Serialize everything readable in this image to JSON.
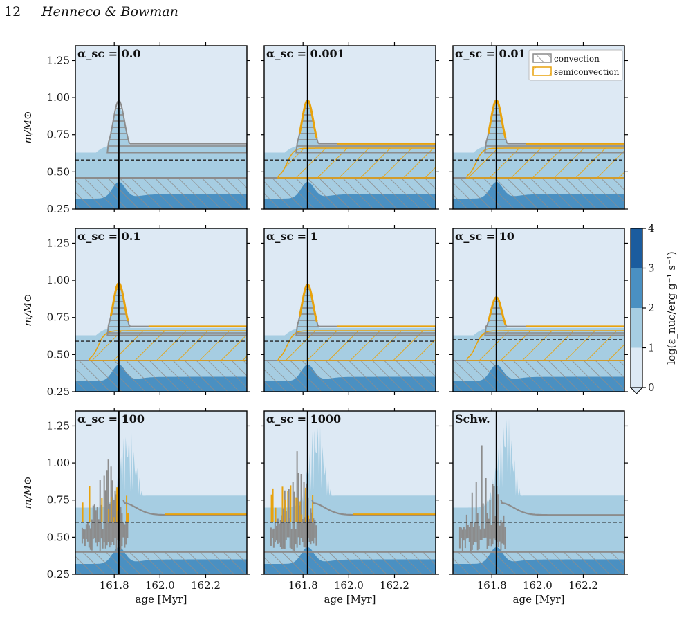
{
  "header": {
    "page_number": "12",
    "running_head": "Henneco & Bowman"
  },
  "colors": {
    "level0": "#dde9f4",
    "level1": "#a6cde2",
    "level2": "#4a90c2",
    "level3": "#1b5c9e",
    "level4": "#08306b",
    "convection": "#8c8c8c",
    "semiconvection": "#e8a20c",
    "axis": "#000000"
  },
  "legend": {
    "convection": "convection",
    "semiconvection": "semiconvection"
  },
  "colorbar": {
    "label": "log(ε_nuc/erg g⁻¹ s⁻¹)",
    "ticks": [
      "0",
      "1",
      "2",
      "3",
      "4"
    ]
  },
  "axes": {
    "xlabel": "age [Myr]",
    "ylabel": "m/M⊙",
    "xticks": [
      "161.8",
      "162.0",
      "162.2"
    ],
    "yticks": [
      "0.25",
      "0.50",
      "0.75",
      "1.00",
      "1.25"
    ]
  },
  "chart_data": {
    "type": "area",
    "xlim": [
      161.63,
      162.38
    ],
    "ylim": [
      0.25,
      1.35
    ],
    "vertical_line_age": 161.82,
    "panels": [
      {
        "label": "α_sc = 0.0",
        "dashed_m": 0.58,
        "core_m": 0.46,
        "peak_m": 1.0,
        "mode": "smooth",
        "conv": "gray"
      },
      {
        "label": "α_sc = 0.001",
        "dashed_m": 0.58,
        "core_m": 0.46,
        "peak_m": 1.02,
        "mode": "smooth",
        "conv": "mixed"
      },
      {
        "label": "α_sc = 0.01",
        "dashed_m": 0.58,
        "core_m": 0.46,
        "peak_m": 1.02,
        "mode": "smooth",
        "conv": "mixed"
      },
      {
        "label": "α_sc = 0.1",
        "dashed_m": 0.59,
        "core_m": 0.46,
        "peak_m": 1.02,
        "mode": "smooth",
        "conv": "mixed"
      },
      {
        "label": "α_sc = 1",
        "dashed_m": 0.59,
        "core_m": 0.46,
        "peak_m": 1.01,
        "mode": "smooth",
        "conv": "mixed"
      },
      {
        "label": "α_sc = 10",
        "dashed_m": 0.6,
        "core_m": 0.46,
        "peak_m": 0.92,
        "mode": "smooth",
        "conv": "mixed"
      },
      {
        "label": "α_sc = 100",
        "dashed_m": 0.6,
        "core_m": 0.46,
        "peak_m": 1.07,
        "mode": "spiky",
        "conv": "mixed"
      },
      {
        "label": "α_sc = 1000",
        "dashed_m": 0.6,
        "core_m": 0.46,
        "peak_m": 1.12,
        "mode": "spiky",
        "conv": "mixed"
      },
      {
        "label": "Schw.",
        "dashed_m": 0.6,
        "core_m": 0.46,
        "peak_m": 1.18,
        "mode": "spiky",
        "conv": "gray"
      }
    ]
  }
}
